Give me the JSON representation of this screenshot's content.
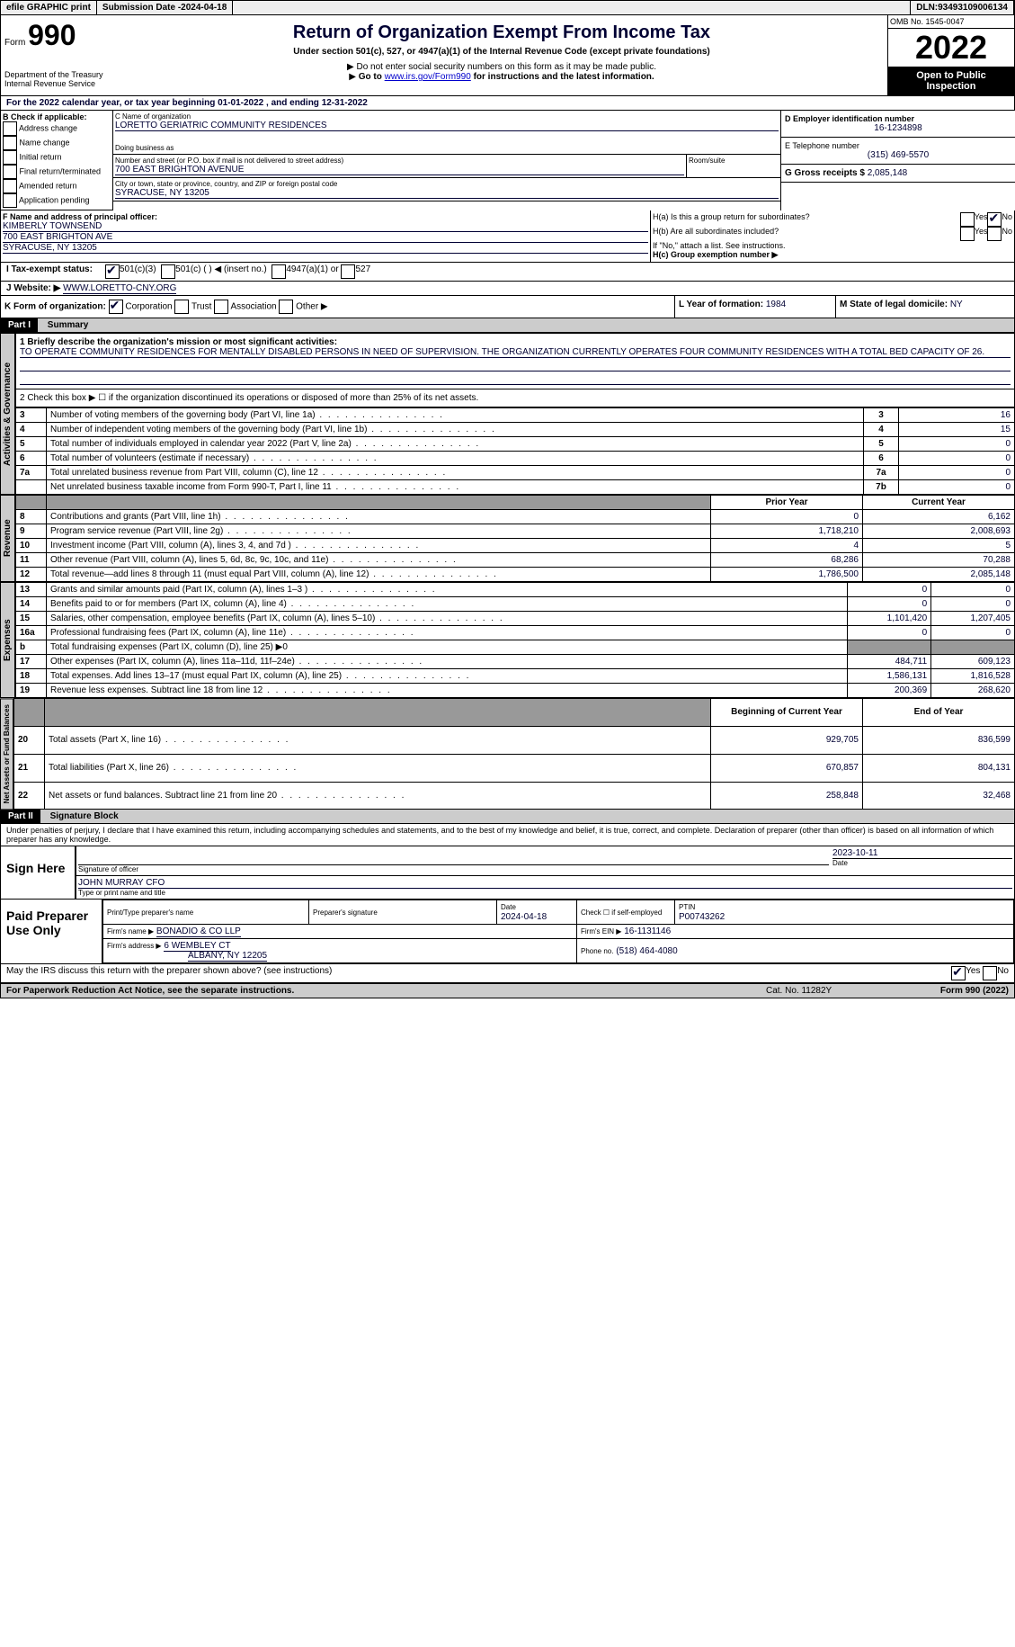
{
  "topbar": {
    "efile": "efile GRAPHIC print",
    "submission_label": "Submission Date - ",
    "submission_date": "2024-04-18",
    "dln_label": "DLN: ",
    "dln": "93493109006134"
  },
  "header": {
    "form_prefix": "Form",
    "form_no": "990",
    "dept": "Department of the Treasury\nInternal Revenue Service",
    "title": "Return of Organization Exempt From Income Tax",
    "subtitle": "Under section 501(c), 527, or 4947(a)(1) of the Internal Revenue Code (except private foundations)",
    "note1": "Do not enter social security numbers on this form as it may be made public.",
    "note2_pre": "Go to ",
    "note2_link": "www.irs.gov/Form990",
    "note2_post": " for instructions and the latest information.",
    "omb": "OMB No. 1545-0047",
    "year": "2022",
    "inspect": "Open to Public Inspection"
  },
  "periodA": "For the 2022 calendar year, or tax year beginning 01-01-2022   , and ending 12-31-2022",
  "checkB": {
    "label": "B Check if applicable:",
    "items": [
      "Address change",
      "Name change",
      "Initial return",
      "Final return/terminated",
      "Amended return",
      "Application pending"
    ]
  },
  "org": {
    "name_label": "C Name of organization",
    "name": "LORETTO GERIATRIC COMMUNITY RESIDENCES",
    "dba_label": "Doing business as",
    "addr_label": "Number and street (or P.O. box if mail is not delivered to street address)",
    "addr": "700 EAST BRIGHTON AVENUE",
    "room_label": "Room/suite",
    "city_label": "City or town, state or province, country, and ZIP or foreign postal code",
    "city": "SYRACUSE, NY  13205"
  },
  "einD": {
    "label": "D Employer identification number",
    "val": "16-1234898"
  },
  "telE": {
    "label": "E Telephone number",
    "val": "(315) 469-5570"
  },
  "grossG": {
    "label": "G Gross receipts $",
    "val": "2,085,148"
  },
  "officerF": {
    "label": "F  Name and address of principal officer:",
    "name": "KIMBERLY TOWNSEND",
    "addr": "700 EAST BRIGHTON AVE",
    "city": "SYRACUSE, NY  13205"
  },
  "H": {
    "a": "H(a)  Is this a group return for subordinates?",
    "b": "H(b)  Are all subordinates included?",
    "bnote": "If \"No,\" attach a list. See instructions.",
    "c": "H(c)  Group exemption number ▶",
    "yes": "Yes",
    "no": "No"
  },
  "taxI": {
    "label": "I  Tax-exempt status:",
    "opts": [
      "501(c)(3)",
      "501(c) (  ) ◀ (insert no.)",
      "4947(a)(1) or",
      "527"
    ]
  },
  "webJ": {
    "label": "J  Website: ▶",
    "val": "WWW.LORETTO-CNY.ORG"
  },
  "formK": {
    "label": "K Form of organization:",
    "opts": [
      "Corporation",
      "Trust",
      "Association",
      "Other ▶"
    ]
  },
  "yearL": {
    "label": "L Year of formation:",
    "val": "1984"
  },
  "stateM": {
    "label": "M State of legal domicile:",
    "val": "NY"
  },
  "part1": {
    "title": "Part I",
    "name": "Summary",
    "l1label": "1  Briefly describe the organization's mission or most significant activities:",
    "l1text": "TO OPERATE COMMUNITY RESIDENCES FOR MENTALLY DISABLED PERSONS IN NEED OF SUPERVISION. THE ORGANIZATION CURRENTLY OPERATES FOUR COMMUNITY RESIDENCES WITH A TOTAL BED CAPACITY OF 26.",
    "l2": "2    Check this box ▶ ☐  if the organization discontinued its operations or disposed of more than 25% of its net assets.",
    "tab_ag": "Activities & Governance",
    "tab_rev": "Revenue",
    "tab_exp": "Expenses",
    "tab_net": "Net Assets or Fund Balances",
    "rows_gov": [
      {
        "n": "3",
        "t": "Number of voting members of the governing body (Part VI, line 1a)",
        "b": "3",
        "v": "16"
      },
      {
        "n": "4",
        "t": "Number of independent voting members of the governing body (Part VI, line 1b)",
        "b": "4",
        "v": "15"
      },
      {
        "n": "5",
        "t": "Total number of individuals employed in calendar year 2022 (Part V, line 2a)",
        "b": "5",
        "v": "0"
      },
      {
        "n": "6",
        "t": "Total number of volunteers (estimate if necessary)",
        "b": "6",
        "v": "0"
      },
      {
        "n": "7a",
        "t": "Total unrelated business revenue from Part VIII, column (C), line 12",
        "b": "7a",
        "v": "0"
      },
      {
        "n": "",
        "t": "Net unrelated business taxable income from Form 990-T, Part I, line 11",
        "b": "7b",
        "v": "0"
      }
    ],
    "col_prior": "Prior Year",
    "col_curr": "Current Year",
    "rows_rev": [
      {
        "n": "8",
        "t": "Contributions and grants (Part VIII, line 1h)",
        "p": "0",
        "c": "6,162"
      },
      {
        "n": "9",
        "t": "Program service revenue (Part VIII, line 2g)",
        "p": "1,718,210",
        "c": "2,008,693"
      },
      {
        "n": "10",
        "t": "Investment income (Part VIII, column (A), lines 3, 4, and 7d )",
        "p": "4",
        "c": "5"
      },
      {
        "n": "11",
        "t": "Other revenue (Part VIII, column (A), lines 5, 6d, 8c, 9c, 10c, and 11e)",
        "p": "68,286",
        "c": "70,288"
      },
      {
        "n": "12",
        "t": "Total revenue—add lines 8 through 11 (must equal Part VIII, column (A), line 12)",
        "p": "1,786,500",
        "c": "2,085,148"
      }
    ],
    "rows_exp": [
      {
        "n": "13",
        "t": "Grants and similar amounts paid (Part IX, column (A), lines 1–3 )",
        "p": "0",
        "c": "0"
      },
      {
        "n": "14",
        "t": "Benefits paid to or for members (Part IX, column (A), line 4)",
        "p": "0",
        "c": "0"
      },
      {
        "n": "15",
        "t": "Salaries, other compensation, employee benefits (Part IX, column (A), lines 5–10)",
        "p": "1,101,420",
        "c": "1,207,405"
      },
      {
        "n": "16a",
        "t": "Professional fundraising fees (Part IX, column (A), line 11e)",
        "p": "0",
        "c": "0"
      },
      {
        "n": "b",
        "t": "Total fundraising expenses (Part IX, column (D), line 25) ▶0",
        "p": "SHADE",
        "c": "SHADE"
      },
      {
        "n": "17",
        "t": "Other expenses (Part IX, column (A), lines 11a–11d, 11f–24e)",
        "p": "484,711",
        "c": "609,123"
      },
      {
        "n": "18",
        "t": "Total expenses. Add lines 13–17 (must equal Part IX, column (A), line 25)",
        "p": "1,586,131",
        "c": "1,816,528"
      },
      {
        "n": "19",
        "t": "Revenue less expenses. Subtract line 18 from line 12",
        "p": "200,369",
        "c": "268,620"
      }
    ],
    "col_beg": "Beginning of Current Year",
    "col_end": "End of Year",
    "rows_net": [
      {
        "n": "20",
        "t": "Total assets (Part X, line 16)",
        "p": "929,705",
        "c": "836,599"
      },
      {
        "n": "21",
        "t": "Total liabilities (Part X, line 26)",
        "p": "670,857",
        "c": "804,131"
      },
      {
        "n": "22",
        "t": "Net assets or fund balances. Subtract line 21 from line 20",
        "p": "258,848",
        "c": "32,468"
      }
    ]
  },
  "part2": {
    "title": "Part II",
    "name": "Signature Block",
    "decl": "Under penalties of perjury, I declare that I have examined this return, including accompanying schedules and statements, and to the best of my knowledge and belief, it is true, correct, and complete. Declaration of preparer (other than officer) is based on all information of which preparer has any knowledge.",
    "sign_here": "Sign Here",
    "sig_officer": "Signature of officer",
    "sig_date_label": "Date",
    "sig_date": "2023-10-11",
    "sig_name": "JOHN MURRAY CFO",
    "sig_name_label": "Type or print name and title",
    "paid": "Paid Preparer Use Only",
    "prep_name_label": "Print/Type preparer's name",
    "prep_sig_label": "Preparer's signature",
    "prep_date_label": "Date",
    "prep_date": "2024-04-18",
    "prep_self": "Check ☐ if self-employed",
    "ptin_label": "PTIN",
    "ptin": "P00743262",
    "firm_name_label": "Firm's name    ▶",
    "firm_name": "BONADIO & CO LLP",
    "firm_ein_label": "Firm's EIN ▶",
    "firm_ein": "16-1131146",
    "firm_addr_label": "Firm's address ▶",
    "firm_addr": "6 WEMBLEY CT",
    "firm_city": "ALBANY, NY  12205",
    "phone_label": "Phone no.",
    "phone": "(518) 464-4080",
    "discuss": "May the IRS discuss this return with the preparer shown above? (see instructions)"
  },
  "footer": {
    "pra": "For Paperwork Reduction Act Notice, see the separate instructions.",
    "cat": "Cat. No. 11282Y",
    "form": "Form 990 (2022)"
  }
}
